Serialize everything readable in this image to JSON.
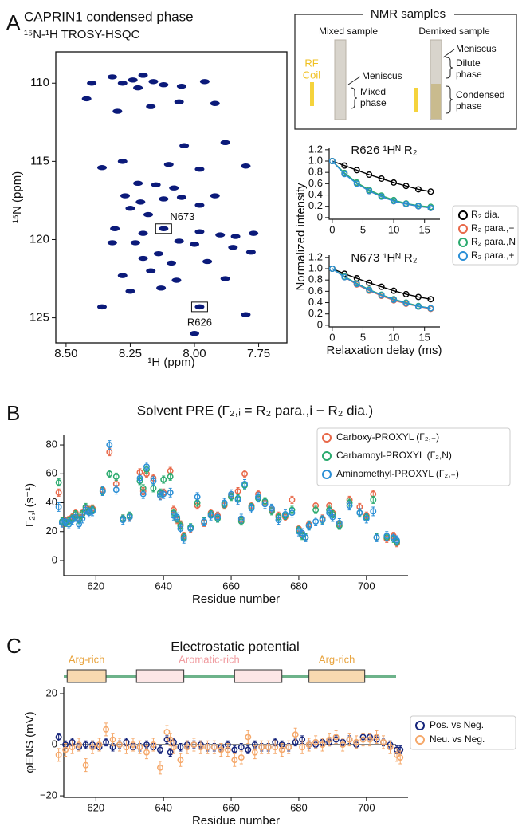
{
  "panels": [
    "A",
    "B",
    "C"
  ],
  "nmr_samples": {
    "title": "NMR samples",
    "mixed": "Mixed sample",
    "demixed": "Demixed sample",
    "rf_coil": [
      "RF",
      "Coil"
    ],
    "meniscus_mixed": "Meniscus",
    "mixed_phase": [
      "Mixed",
      "phase"
    ],
    "meniscus_demixed": "Meniscus",
    "dilute_phase": [
      "Dilute",
      "phase"
    ],
    "condensed_phase": [
      "Condensed",
      "phase"
    ]
  },
  "chart_data": [
    {
      "type": "scatter",
      "title": "CAPRIN1 condensed phase",
      "subtitle": "¹⁵N-¹H TROSY-HSQC",
      "xlabel": "¹H (ppm)",
      "ylabel": "¹⁵N (ppm)",
      "color": "#0b1a7a",
      "xlim": [
        8.54,
        7.64
      ],
      "ylim": [
        126.6,
        108.0
      ],
      "xticks": [
        {
          "value": 8.5,
          "label": "8.50"
        },
        8.25,
        {
          "value": 8,
          "label": "8.00"
        },
        7.75
      ],
      "yticks": [
        110,
        115,
        120,
        125
      ],
      "x": [
        8.4,
        8.32,
        8.28,
        8.24,
        8.2,
        8.22,
        8.16,
        8.12,
        8.05,
        7.96,
        8.42,
        8.06,
        7.92,
        8.3,
        8.17,
        7.88,
        8.04,
        8.28,
        8.1,
        8.36,
        7.98,
        7.8,
        8.22,
        8.15,
        8.08,
        8.27,
        8.21,
        8.12,
        8.05,
        7.98,
        7.92,
        8.18,
        8.25,
        8.31,
        8.12,
        8.2,
        7.98,
        7.9,
        7.84,
        8.23,
        8.06,
        8.0,
        7.85,
        7.78,
        8.14,
        8.2,
        8.09,
        7.95,
        8.17,
        8.28,
        8.07,
        7.88,
        8.25,
        8.13,
        8.36,
        7.98,
        7.8,
        8.0,
        8.32,
        7.77
      ],
      "values": [
        110.0,
        109.6,
        110.0,
        109.8,
        109.5,
        110.3,
        109.9,
        110.1,
        110.2,
        109.9,
        111.0,
        111.2,
        111.3,
        111.8,
        111.5,
        113.8,
        114.0,
        115.0,
        115.2,
        115.4,
        115.5,
        115.3,
        116.4,
        116.5,
        116.7,
        117.2,
        117.6,
        117.4,
        117.3,
        117.8,
        117.2,
        118.4,
        118.0,
        119.3,
        119.3,
        119.6,
        119.5,
        119.7,
        119.8,
        120.2,
        120.1,
        120.3,
        120.5,
        120.8,
        120.9,
        121.2,
        121.5,
        121.4,
        122.0,
        122.3,
        122.6,
        122.5,
        123.3,
        123.1,
        124.3,
        124.3,
        124.8,
        126.0,
        120.2,
        119.6
      ],
      "annotations": [
        {
          "text": "N673",
          "x": 8.12,
          "y": 119.3
        },
        {
          "text": "R626",
          "x": 7.98,
          "y": 124.3
        }
      ]
    },
    {
      "type": "line",
      "title": "R626 ¹Hᴺ R₂",
      "ylabel": "Normalized intensity",
      "xlim": [
        -0.5,
        17.5
      ],
      "ylim": [
        -0.03,
        1.24
      ],
      "xticks": [
        0,
        5,
        10,
        15
      ],
      "yticks": [
        0,
        0.2,
        0.4,
        0.6,
        0.8,
        {
          "value": 1,
          "label": "1.0"
        },
        1.2
      ],
      "x": [
        0,
        2,
        4,
        6,
        8,
        10,
        12,
        14,
        16
      ],
      "series": [
        {
          "name": "R₂ dia.",
          "color": "#000000",
          "values": [
            1.0,
            0.92,
            0.84,
            0.76,
            0.69,
            0.62,
            0.56,
            0.5,
            0.46
          ]
        },
        {
          "name": "R₂ para.,−",
          "color": "#e8694a",
          "values": [
            1.0,
            0.78,
            0.61,
            0.47,
            0.37,
            0.29,
            0.24,
            0.2,
            0.17
          ]
        },
        {
          "name": "R₂ para.,N",
          "color": "#2aaa6e",
          "values": [
            1.0,
            0.79,
            0.62,
            0.49,
            0.39,
            0.31,
            0.25,
            0.21,
            0.19
          ]
        },
        {
          "name": "R₂ para.,+",
          "color": "#2b8fd6",
          "values": [
            1.0,
            0.77,
            0.6,
            0.47,
            0.37,
            0.29,
            0.24,
            0.2,
            0.17
          ]
        }
      ]
    },
    {
      "type": "line",
      "title": "N673 ¹Hᴺ R₂",
      "xlabel": "Relaxation delay (ms)",
      "xlim": [
        -0.5,
        17.5
      ],
      "ylim": [
        -0.03,
        1.24
      ],
      "xticks": [
        0,
        5,
        10,
        15
      ],
      "yticks": [
        0,
        0.2,
        0.4,
        0.6,
        0.8,
        {
          "value": 1,
          "label": "1.0"
        },
        1.2
      ],
      "x": [
        0,
        2,
        4,
        6,
        8,
        10,
        12,
        14,
        16
      ],
      "series": [
        {
          "color": "#000000",
          "values": [
            1.0,
            0.91,
            0.83,
            0.75,
            0.68,
            0.61,
            0.55,
            0.5,
            0.46
          ]
        },
        {
          "color": "#e8694a",
          "values": [
            1.0,
            0.85,
            0.72,
            0.61,
            0.52,
            0.44,
            0.38,
            0.33,
            0.29
          ]
        },
        {
          "color": "#2aaa6e",
          "values": [
            1.0,
            0.86,
            0.74,
            0.63,
            0.54,
            0.46,
            0.4,
            0.34,
            0.3
          ]
        },
        {
          "color": "#2b8fd6",
          "values": [
            1.0,
            0.85,
            0.73,
            0.62,
            0.53,
            0.45,
            0.39,
            0.33,
            0.3
          ]
        }
      ]
    },
    {
      "type": "errorbar",
      "title": "Solvent PRE (Γ₂,ᵢ = R₂ para.,i − R₂ dia.)",
      "xlabel": "Residue number",
      "ylabel": "Γ₂,ᵢ (s⁻¹)",
      "xlim": [
        610.5,
        712.3
      ],
      "ylim": [
        -10.5,
        87.2
      ],
      "xticks": [
        620,
        640,
        660,
        680,
        700
      ],
      "yticks": [
        0,
        20,
        40,
        60,
        80
      ],
      "x": [
        609,
        610,
        611,
        612,
        613,
        614,
        615,
        616,
        617,
        618,
        619,
        622,
        624,
        626,
        628,
        630,
        633,
        634,
        635,
        637,
        639,
        640,
        642,
        643,
        644,
        645,
        646,
        648,
        650,
        652,
        654,
        656,
        658,
        660,
        662,
        663,
        664,
        666,
        668,
        670,
        672,
        674,
        676,
        678,
        680,
        681,
        682,
        683,
        685,
        687,
        689,
        690,
        692,
        695,
        698,
        700,
        702,
        703,
        706,
        708,
        709
      ],
      "series": [
        {
          "name": "Carboxy-PROXYL (Γ₂,₋)",
          "color": "#e8694a",
          "error": 2.5,
          "values": [
            47,
            26,
            27,
            28,
            30,
            33,
            29,
            33,
            36,
            35,
            36,
            49,
            75,
            53,
            29,
            30,
            61,
            48,
            60,
            57,
            45,
            47,
            62,
            35,
            28,
            25,
            17,
            22,
            38,
            26,
            33,
            31,
            38,
            45,
            48,
            28,
            60,
            38,
            46,
            40,
            35,
            31,
            30,
            42,
            22,
            18,
            16,
            25,
            38,
            29,
            38,
            33,
            25,
            42,
            37,
            31,
            46,
            16,
            15,
            17,
            12
          ]
        },
        {
          "name": "Carbamoyl-PROXYL (Γ₂,N)",
          "color": "#2aaa6e",
          "error": 2.5,
          "values": [
            54,
            27,
            26,
            27,
            29,
            32,
            28,
            32,
            37,
            34,
            35,
            48,
            60,
            58,
            29,
            31,
            55,
            50,
            63,
            50,
            47,
            56,
            58,
            33,
            29,
            24,
            16,
            23,
            40,
            27,
            32,
            29,
            39,
            44,
            43,
            27,
            52,
            37,
            43,
            41,
            34,
            30,
            31,
            35,
            21,
            17,
            16,
            24,
            35,
            28,
            35,
            32,
            24,
            40,
            33,
            30,
            42,
            16,
            16,
            15,
            13
          ]
        },
        {
          "name": "Aminomethyl-PROXYL (Γ₂,₊)",
          "color": "#2b8fd6",
          "error": 3,
          "values": [
            37,
            26,
            27,
            25,
            28,
            30,
            25,
            29,
            35,
            33,
            34,
            48,
            80,
            49,
            28,
            30,
            57,
            46,
            65,
            55,
            45,
            46,
            47,
            31,
            30,
            22,
            15,
            22,
            44,
            27,
            31,
            30,
            40,
            46,
            42,
            29,
            53,
            36,
            44,
            39,
            36,
            28,
            32,
            33,
            20,
            19,
            16,
            24,
            27,
            28,
            33,
            30,
            26,
            38,
            33,
            29,
            34,
            16,
            17,
            16,
            14
          ]
        }
      ]
    },
    {
      "type": "errorbar",
      "title": "Electrostatic potential",
      "xlabel": "Residue number",
      "ylabel": "φENS (mV)",
      "xlim": [
        610.5,
        712.3
      ],
      "ylim": [
        -20.6,
        22.5
      ],
      "xticks": [
        620,
        640,
        660,
        680,
        700
      ],
      "yticks": [
        {
          "value": -20,
          "label": "−20"
        },
        0,
        20
      ],
      "reference_line": 0,
      "regions": [
        {
          "label": "Arg-rich",
          "start": 611.5,
          "end": 623,
          "color": "#f7d9b0",
          "label_color": "#e8a33d"
        },
        {
          "start": 632,
          "end": 646,
          "color": "#fde6e6"
        },
        {
          "start": 661,
          "end": 675,
          "color": "#fde6e6"
        },
        {
          "label": "Arg-rich",
          "start": 683,
          "end": 699.5,
          "color": "#f7d9b0",
          "label_color": "#e8a33d"
        }
      ],
      "region_line_color": "#6db38a",
      "annotations": [
        {
          "text": "Aromatic-rich",
          "x": 653.5,
          "color": "#f09ca0"
        }
      ],
      "x": [
        609,
        611,
        613,
        615,
        617,
        619,
        621,
        623,
        625,
        627,
        629,
        631,
        633,
        635,
        637,
        639,
        641,
        642,
        643,
        645,
        647,
        649,
        651,
        653,
        655,
        657,
        659,
        661,
        663,
        665,
        667,
        669,
        671,
        673,
        675,
        677,
        679,
        681,
        683,
        685,
        687,
        689,
        691,
        693,
        695,
        697,
        699,
        701,
        703,
        705,
        707,
        709,
        710
      ],
      "series": [
        {
          "name": "Pos. vs Neg.",
          "color": "#14237a",
          "error": 1.5,
          "values": [
            3,
            0,
            1,
            -1,
            0,
            0,
            -1,
            1,
            -1,
            0,
            1,
            -1,
            -1,
            0,
            -1,
            -2,
            2,
            -3,
            1,
            -1,
            0,
            0,
            0,
            -1,
            -1,
            -1,
            0,
            -2,
            -1,
            -2,
            0,
            -1,
            -1,
            1,
            0,
            -1,
            1,
            2,
            0,
            0,
            1,
            1,
            2,
            1,
            2,
            0,
            3,
            3,
            2,
            1,
            0,
            -2,
            -2
          ]
        },
        {
          "name": "Neu. vs Neg.",
          "color": "#f5a86a",
          "error": 2.5,
          "values": [
            -4,
            -2,
            -1,
            0,
            -8,
            -1,
            0,
            6,
            2,
            0,
            -1,
            0,
            -1,
            -3,
            0,
            -9,
            5,
            2,
            -1,
            -6,
            -1,
            0,
            -1,
            -1,
            -1,
            -2,
            -2,
            -6,
            -5,
            3,
            -3,
            -1,
            -1,
            -1,
            -2,
            -1,
            4,
            -1,
            0,
            1,
            0,
            2,
            3,
            0,
            2,
            1,
            2,
            2,
            3,
            1,
            -1,
            -4,
            -5
          ]
        }
      ]
    }
  ]
}
